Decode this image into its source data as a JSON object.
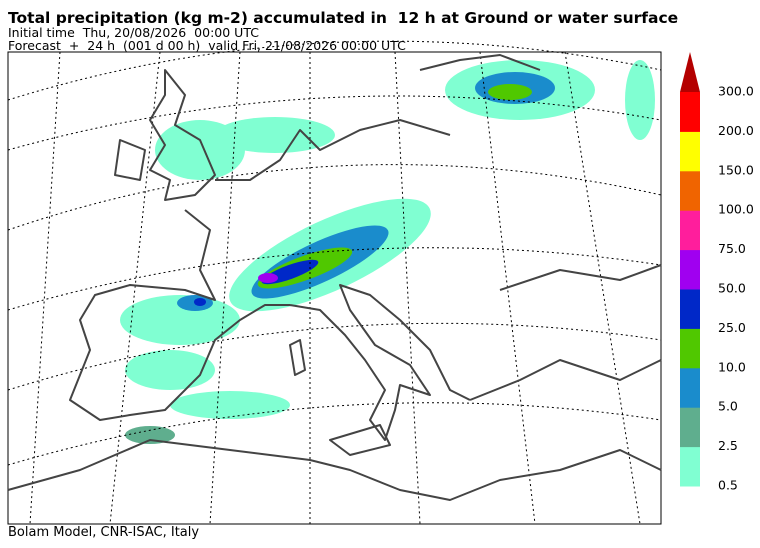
{
  "header": {
    "title": "Total precipitation (kg m-2) accumulated in  12 h at Ground or water surface",
    "initial_time": "Initial time  Thu, 20/08/2026  00:00 UTC",
    "forecast": "Forecast  +  24 h  (001 d 00 h)  valid Fri, 21/08/2026 00:00 UTC"
  },
  "legend": {
    "labels": [
      "0.5",
      "2.5",
      "5.0",
      "10.0",
      "25.0",
      "50.0",
      "75.0",
      "100.0",
      "150.0",
      "200.0",
      "300.0"
    ],
    "colors": [
      "#80ffd2",
      "#5fae8e",
      "#1a8ccc",
      "#50c800",
      "#0028c8",
      "#a000f0",
      "#ff1e9c",
      "#f06400",
      "#ffff00",
      "#ff0000"
    ],
    "extend_color": "#b40000"
  },
  "footer": "Bolam Model, CNR-ISAC, Italy"
}
